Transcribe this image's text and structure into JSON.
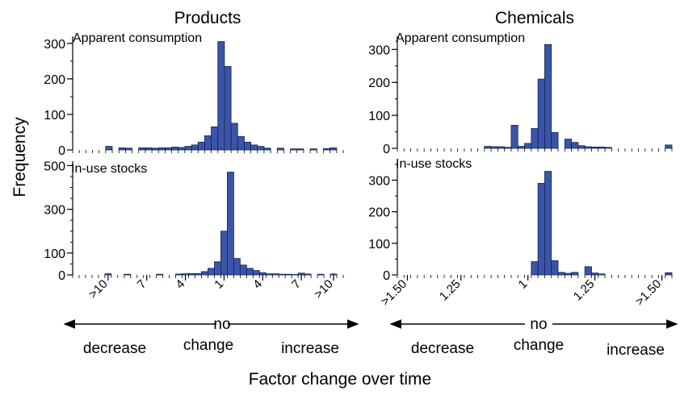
{
  "figure": {
    "ylabel": "Frequency",
    "xlabel": "Factor change over time",
    "no_label": "no",
    "change_label": "change",
    "decrease_label": "decrease",
    "increase_label": "increase"
  },
  "chart_data": [
    {
      "type": "bar",
      "column_title": "Products",
      "panel_title": "Apparent consumption",
      "ylim": [
        0,
        320
      ],
      "yticks": [
        0,
        100,
        200,
        300
      ],
      "values": [
        0,
        0,
        0,
        0,
        0,
        10,
        0,
        6,
        5,
        0,
        6,
        6,
        5,
        6,
        6,
        8,
        7,
        10,
        14,
        22,
        40,
        65,
        305,
        235,
        75,
        38,
        22,
        14,
        10,
        5,
        0,
        5,
        0,
        3,
        3,
        0,
        3,
        0,
        4,
        6,
        0
      ],
      "xtick_labels": [
        ">10",
        "7",
        "4",
        "1",
        "4",
        "7",
        ">10"
      ],
      "xtick_bins": [
        5,
        11,
        17,
        23,
        29,
        35,
        40
      ]
    },
    {
      "type": "bar",
      "column_title": "Products",
      "panel_title": "In-use stocks",
      "ylim": [
        0,
        520
      ],
      "yticks": [
        0,
        100,
        300,
        500
      ],
      "values": [
        0,
        0,
        0,
        0,
        0,
        5,
        0,
        0,
        3,
        0,
        0,
        0,
        0,
        3,
        0,
        0,
        4,
        5,
        6,
        6,
        15,
        30,
        60,
        200,
        470,
        75,
        45,
        30,
        20,
        10,
        5,
        5,
        3,
        3,
        2,
        8,
        4,
        0,
        3,
        0,
        4,
        0
      ],
      "xtick_labels": [
        ">10",
        "7",
        "4",
        "1",
        "4",
        "7",
        ">10"
      ],
      "xtick_bins": [
        5,
        11,
        17,
        23,
        29,
        35,
        40
      ]
    },
    {
      "type": "bar",
      "column_title": "Chemicals",
      "panel_title": "Apparent consumption",
      "ylim": [
        0,
        340
      ],
      "yticks": [
        0,
        100,
        200,
        300
      ],
      "values": [
        0,
        0,
        0,
        0,
        0,
        0,
        0,
        0,
        0,
        0,
        0,
        0,
        0,
        6,
        5,
        5,
        3,
        70,
        6,
        15,
        60,
        210,
        315,
        48,
        0,
        28,
        18,
        8,
        5,
        4,
        4,
        3,
        0,
        0,
        0,
        0,
        0,
        0,
        0,
        0,
        10
      ],
      "xtick_labels": [
        ">1.50",
        "1.25",
        "1",
        "1.25",
        ">1.50"
      ],
      "xtick_bins": [
        1,
        9,
        19,
        29,
        39
      ]
    },
    {
      "type": "bar",
      "column_title": "Chemicals",
      "panel_title": "In-use stocks",
      "ylim": [
        0,
        360
      ],
      "yticks": [
        0,
        100,
        200,
        300
      ],
      "values": [
        0,
        0,
        0,
        0,
        0,
        0,
        0,
        0,
        0,
        0,
        0,
        0,
        0,
        0,
        0,
        0,
        0,
        0,
        0,
        0,
        42,
        290,
        328,
        45,
        8,
        5,
        8,
        0,
        26,
        6,
        3,
        0,
        0,
        0,
        0,
        0,
        0,
        0,
        0,
        0,
        7
      ],
      "xtick_labels": [
        ">1.50",
        "1.25",
        "1",
        "1.25",
        ">1.50"
      ],
      "xtick_bins": [
        1,
        9,
        19,
        29,
        39
      ]
    }
  ]
}
